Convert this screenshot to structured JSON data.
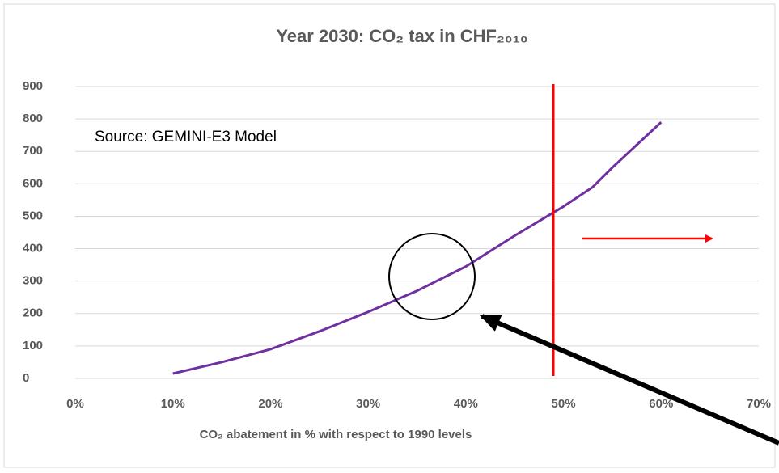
{
  "chart_data": {
    "type": "line",
    "title": "Year 2030: CO₂ tax in CHF₂₀₁₀",
    "x_label": "CO₂ abatement in % with respect to 1990 levels",
    "annotation": "Source: GEMINI-E3 Model",
    "x": [
      10,
      15,
      20,
      25,
      30,
      35,
      40,
      45,
      50,
      53,
      55,
      60
    ],
    "series": [
      {
        "name": "CO₂ tax",
        "color": "#7030a0",
        "values": [
          15,
          50,
          90,
          145,
          205,
          270,
          345,
          440,
          530,
          590,
          650,
          790
        ]
      }
    ],
    "xlim": [
      0,
      70
    ],
    "xticks": [
      {
        "value": 0,
        "label": "0%"
      },
      {
        "value": 10,
        "label": "10%"
      },
      {
        "value": 20,
        "label": "20%"
      },
      {
        "value": 30,
        "label": "30%"
      },
      {
        "value": 40,
        "label": "40%"
      },
      {
        "value": 50,
        "label": "50%"
      },
      {
        "value": 60,
        "label": "60%"
      },
      {
        "value": 70,
        "label": "70%"
      }
    ],
    "ylim": [
      0,
      900
    ],
    "yticks": [
      0,
      100,
      200,
      300,
      400,
      500,
      600,
      700,
      800,
      900
    ],
    "grid": true
  }
}
